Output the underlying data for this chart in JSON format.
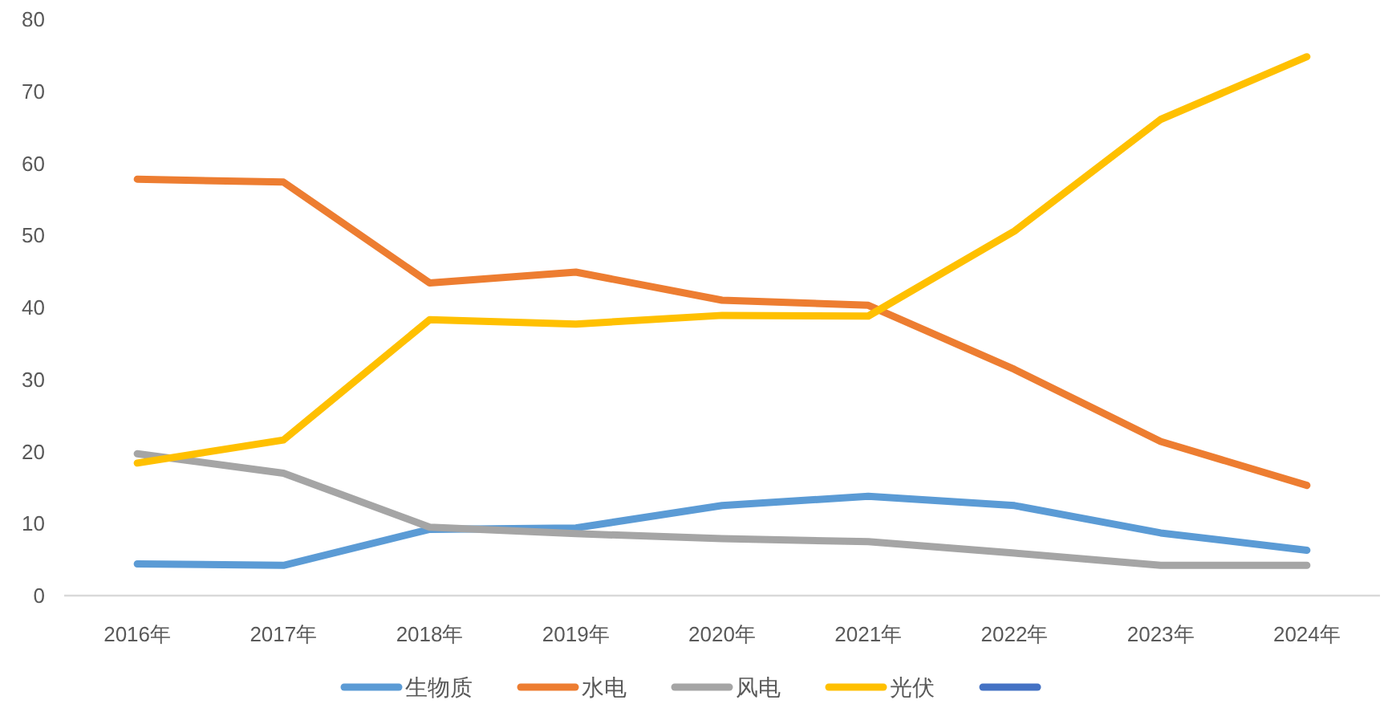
{
  "chart_data": {
    "type": "line",
    "categories": [
      "2016年",
      "2017年",
      "2018年",
      "2019年",
      "2020年",
      "2021年",
      "2022年",
      "2023年",
      "2024年"
    ],
    "ylim": [
      0,
      80
    ],
    "yticks": [
      0,
      10,
      20,
      30,
      40,
      50,
      60,
      70,
      80
    ],
    "legend": "bottom",
    "series": [
      {
        "name": "生物质",
        "color": "#5b9bd5",
        "values": [
          4.4,
          4.2,
          9.2,
          9.4,
          12.5,
          13.8,
          12.5,
          8.7,
          6.3
        ]
      },
      {
        "name": "水电",
        "color": "#ed7d31",
        "values": [
          57.8,
          57.4,
          43.4,
          44.9,
          41.0,
          40.3,
          31.4,
          21.4,
          15.3
        ]
      },
      {
        "name": "风电",
        "color": "#a5a5a5",
        "values": [
          19.7,
          17.0,
          9.5,
          8.6,
          7.9,
          7.5,
          5.9,
          4.2,
          4.2
        ]
      },
      {
        "name": "光伏",
        "color": "#ffc000",
        "values": [
          18.4,
          21.6,
          38.3,
          37.7,
          38.9,
          38.8,
          50.6,
          66.1,
          74.8
        ]
      },
      {
        "color": "#4472c4",
        "values": [
          null,
          null,
          null,
          null,
          null,
          null,
          null,
          null,
          null
        ]
      }
    ]
  }
}
